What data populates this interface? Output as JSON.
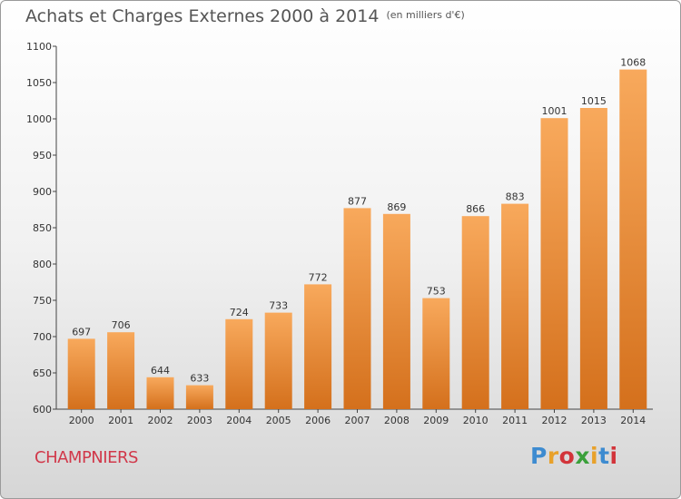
{
  "header": {
    "title": "Achats et Charges Externes 2000 à 2014",
    "unit": "(en milliers d'€)"
  },
  "footer": {
    "commune": "CHAMPNIERS",
    "logo_letters": [
      "P",
      "r",
      "o",
      "x",
      "i",
      "t",
      "i"
    ],
    "logo_colors": [
      "#3d8bd0",
      "#e8a12a",
      "#d2343a",
      "#3aa03a",
      "#e8a12a",
      "#3d8bd0",
      "#d2343a"
    ]
  },
  "chart_data": {
    "type": "bar",
    "title": "Achats et Charges Externes 2000 à 2014",
    "xlabel": "",
    "ylabel": "",
    "categories": [
      "2000",
      "2001",
      "2002",
      "2003",
      "2004",
      "2005",
      "2006",
      "2007",
      "2008",
      "2009",
      "2010",
      "2011",
      "2012",
      "2013",
      "2014"
    ],
    "values": [
      697,
      706,
      644,
      633,
      724,
      733,
      772,
      877,
      869,
      753,
      866,
      883,
      1001,
      1015,
      1068
    ],
    "ylim": [
      600,
      1100
    ],
    "yticks": [
      600,
      650,
      700,
      750,
      800,
      850,
      900,
      950,
      1000,
      1050,
      1100
    ],
    "grid": false,
    "bar_color_top": "#f8a95c",
    "bar_color_bottom": "#d4701c"
  }
}
